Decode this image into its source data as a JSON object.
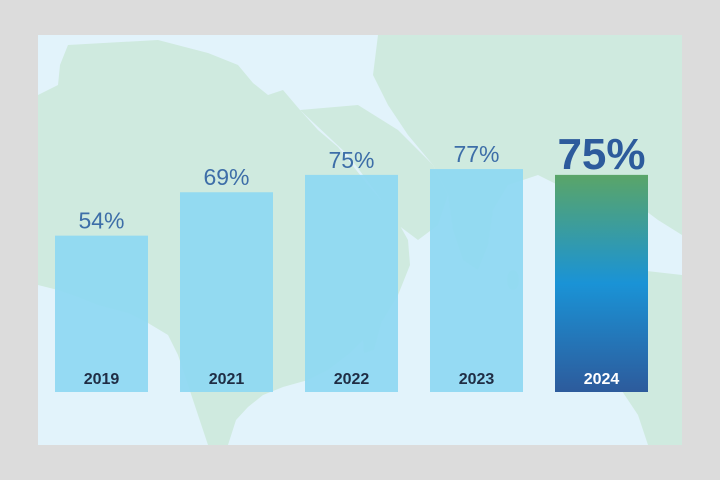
{
  "chart_data": {
    "type": "bar",
    "categories": [
      "2019",
      "2021",
      "2022",
      "2023",
      "2024"
    ],
    "values": [
      54,
      69,
      75,
      77,
      75
    ],
    "value_labels": [
      "54%",
      "69%",
      "75%",
      "77%",
      "75%"
    ],
    "highlight_index": 4,
    "ylim": [
      0,
      100
    ],
    "title": "",
    "xlabel": "",
    "ylabel": "",
    "grid": false,
    "legend": "none"
  },
  "colors": {
    "bar": "#8ed8f2",
    "highlight_top": "#5aa568",
    "highlight_mid": "#1a93d6",
    "highlight_bottom": "#2d5b9c",
    "value_text": "#3d6ea8",
    "highlight_value_text": "#2d5b9c",
    "category_text": "#1f2d44",
    "highlight_category_text": "#ffffff",
    "land": "#cfeadf",
    "panel": "#e2f3fb"
  }
}
